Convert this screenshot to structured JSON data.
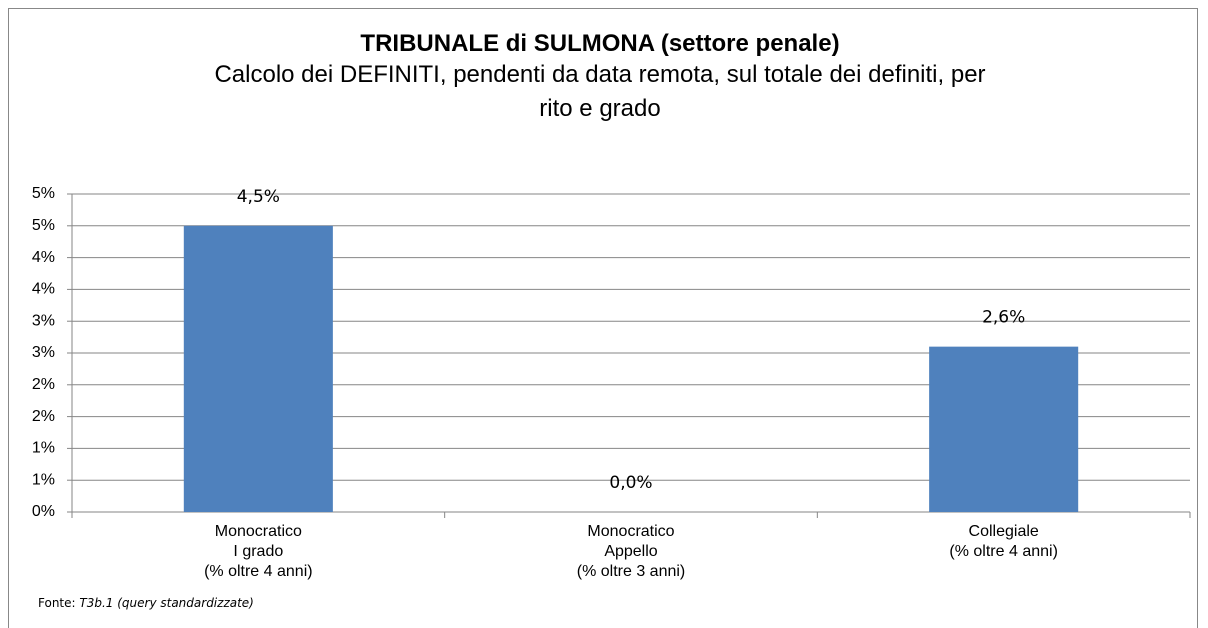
{
  "chart_data": {
    "type": "bar",
    "title": "TRIBUNALE di SULMONA (settore penale)",
    "subtitle": "Calcolo dei DEFINITI, pendenti da data remota, sul totale dei definiti, per rito e grado",
    "categories": [
      [
        "Monocratico",
        "I grado",
        "(% oltre 4 anni)"
      ],
      [
        "Monocratico",
        "Appello",
        "(% oltre 3 anni)"
      ],
      [
        "Collegiale",
        "(% oltre 4 anni)"
      ]
    ],
    "values": [
      4.5,
      0.0,
      2.6
    ],
    "value_labels": [
      "4,5%",
      "0,0%",
      "2,6%"
    ],
    "color": "#4f81bd",
    "ylim": [
      0,
      5
    ],
    "yticks": [
      {
        "value": 0,
        "label": "0%"
      },
      {
        "value": 0.5,
        "label": "1%"
      },
      {
        "value": 1,
        "label": "1%"
      },
      {
        "value": 1.5,
        "label": "2%"
      },
      {
        "value": 2,
        "label": "2%"
      },
      {
        "value": 2.5,
        "label": "3%"
      },
      {
        "value": 3,
        "label": "3%"
      },
      {
        "value": 3.5,
        "label": "4%"
      },
      {
        "value": 4,
        "label": "4%"
      },
      {
        "value": 4.5,
        "label": "5%"
      },
      {
        "value": 5,
        "label": "5%"
      }
    ],
    "grid": true,
    "source": {
      "label": "Fonte:",
      "text": "T3b.1 (query standardizzate)"
    }
  }
}
